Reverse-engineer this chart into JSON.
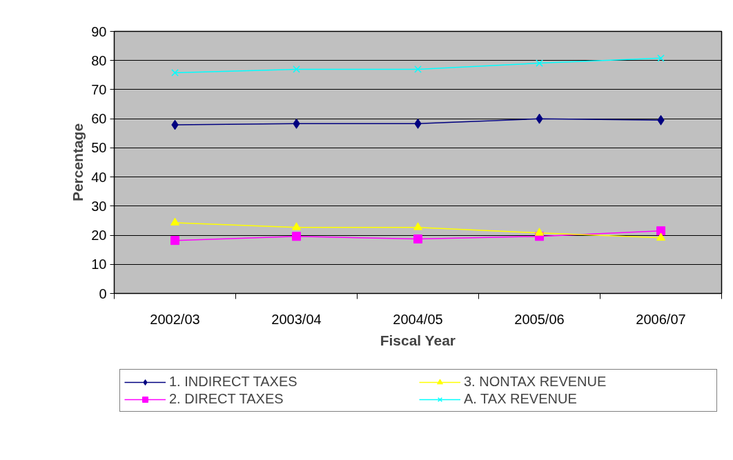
{
  "chart_data": {
    "type": "line",
    "xlabel": "Fiscal Year",
    "ylabel": "Percentage",
    "categories": [
      "2002/03",
      "2003/04",
      "2004/05",
      "2005/06",
      "2006/07"
    ],
    "series": [
      {
        "name": "1. INDIRECT TAXES",
        "color": "#000080",
        "marker": "diamond",
        "values": [
          57.9,
          58.3,
          58.3,
          60.0,
          59.5
        ]
      },
      {
        "name": "2. DIRECT TAXES",
        "color": "#ff00ff",
        "marker": "square",
        "values": [
          18.2,
          19.6,
          18.7,
          19.6,
          21.5
        ]
      },
      {
        "name": "3. NONTAX REVENUE",
        "color": "#ffff00",
        "marker": "triangle",
        "values": [
          24.3,
          22.7,
          22.7,
          20.8,
          19.1
        ]
      },
      {
        "name": "A. TAX REVENUE",
        "color": "#00ffff",
        "marker": "cross",
        "values": [
          75.8,
          77.0,
          77.0,
          79.1,
          80.8
        ]
      }
    ],
    "ylim": [
      0,
      90
    ],
    "yticks": [
      0,
      10,
      20,
      30,
      40,
      50,
      60,
      70,
      80,
      90
    ],
    "grid": "y",
    "legend": "bottom"
  }
}
